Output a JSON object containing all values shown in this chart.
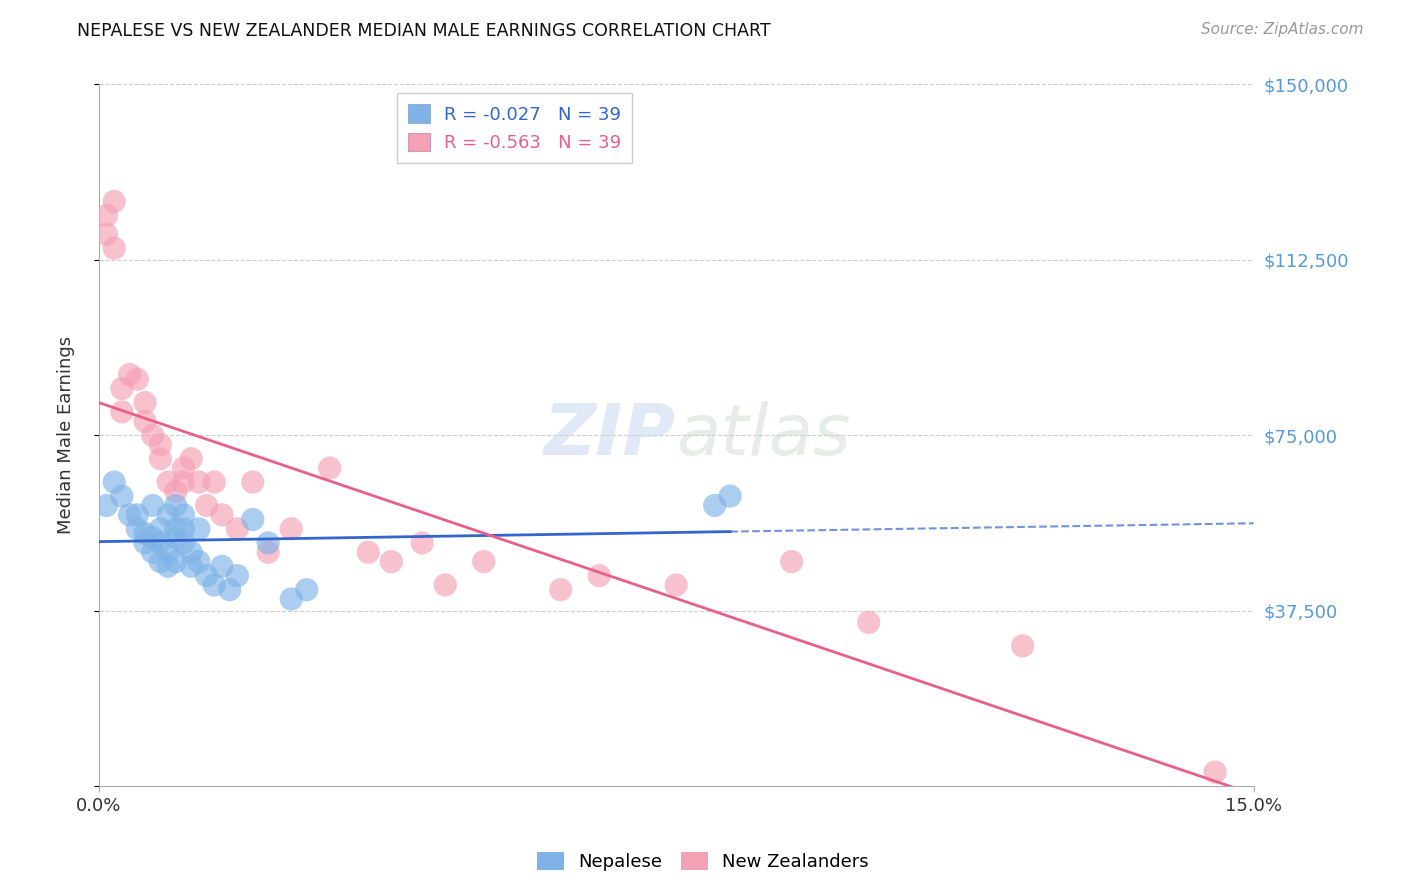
{
  "title": "NEPALESE VS NEW ZEALANDER MEDIAN MALE EARNINGS CORRELATION CHART",
  "source": "Source: ZipAtlas.com",
  "ylabel": "Median Male Earnings",
  "xlim": [
    0.0,
    0.15
  ],
  "ylim": [
    0,
    150000
  ],
  "yticks": [
    0,
    37500,
    75000,
    112500,
    150000
  ],
  "ytick_labels": [
    "",
    "$37,500",
    "$75,000",
    "$112,500",
    "$150,000"
  ],
  "bg_color": "#ffffff",
  "grid_color": "#cccccc",
  "blue_color": "#7fb3e8",
  "pink_color": "#f4a0b5",
  "blue_line_color": "#3366cc",
  "pink_line_color": "#e8608a",
  "legend_label_blue": "Nepalese",
  "legend_label_pink": "New Zealanders",
  "nepalese_x": [
    0.001,
    0.002,
    0.003,
    0.004,
    0.005,
    0.005,
    0.006,
    0.006,
    0.007,
    0.007,
    0.007,
    0.008,
    0.008,
    0.008,
    0.009,
    0.009,
    0.009,
    0.01,
    0.01,
    0.01,
    0.01,
    0.011,
    0.011,
    0.011,
    0.012,
    0.012,
    0.013,
    0.013,
    0.014,
    0.015,
    0.016,
    0.017,
    0.018,
    0.02,
    0.022,
    0.025,
    0.027,
    0.08,
    0.082
  ],
  "nepalese_y": [
    60000,
    65000,
    62000,
    58000,
    55000,
    58000,
    52000,
    54000,
    50000,
    53000,
    60000,
    48000,
    52000,
    55000,
    50000,
    47000,
    58000,
    55000,
    48000,
    60000,
    53000,
    58000,
    55000,
    52000,
    50000,
    47000,
    55000,
    48000,
    45000,
    43000,
    47000,
    42000,
    45000,
    57000,
    52000,
    40000,
    42000,
    60000,
    62000
  ],
  "nz_x": [
    0.001,
    0.001,
    0.002,
    0.002,
    0.003,
    0.003,
    0.004,
    0.005,
    0.006,
    0.006,
    0.007,
    0.008,
    0.008,
    0.009,
    0.01,
    0.011,
    0.011,
    0.012,
    0.013,
    0.014,
    0.015,
    0.016,
    0.018,
    0.02,
    0.022,
    0.025,
    0.03,
    0.035,
    0.038,
    0.042,
    0.045,
    0.05,
    0.06,
    0.065,
    0.075,
    0.09,
    0.1,
    0.12,
    0.145
  ],
  "nz_y": [
    122000,
    118000,
    125000,
    115000,
    85000,
    80000,
    88000,
    87000,
    78000,
    82000,
    75000,
    70000,
    73000,
    65000,
    63000,
    65000,
    68000,
    70000,
    65000,
    60000,
    65000,
    58000,
    55000,
    65000,
    50000,
    55000,
    68000,
    50000,
    48000,
    52000,
    43000,
    48000,
    42000,
    45000,
    43000,
    48000,
    35000,
    30000,
    3000
  ]
}
